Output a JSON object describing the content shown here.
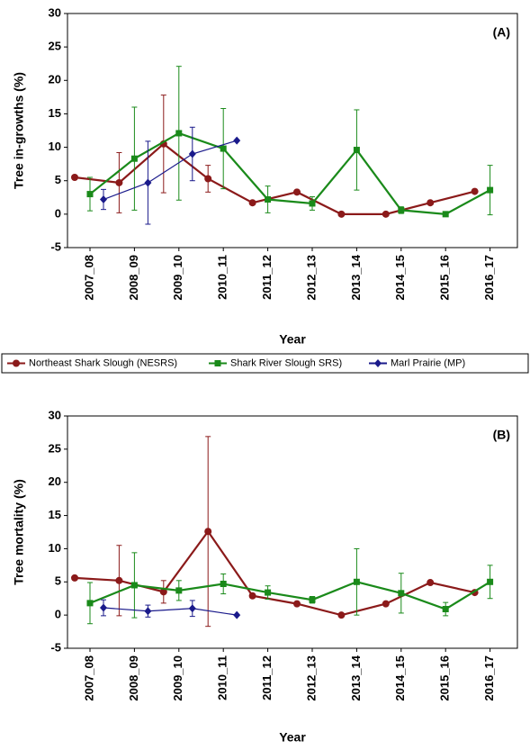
{
  "chart_data": [
    {
      "type": "line",
      "y_label": "Tree in-growths (%)",
      "x_label": "Year",
      "annotation": "(A)",
      "categories": [
        "2007_08",
        "2008_09",
        "2009_10",
        "2010_11",
        "2011_12",
        "2012_13",
        "2013_14",
        "2014_15",
        "2015_16",
        "2016_17"
      ],
      "ylim": [
        -5,
        30
      ],
      "yticks": [
        -5,
        0,
        5,
        10,
        15,
        20,
        25,
        30
      ],
      "legend": true,
      "series": [
        {
          "name": "Northeast Shark Slough (NESRS)",
          "color": "#8b1a1a",
          "marker": "circle",
          "values": [
            5.5,
            4.7,
            10.5,
            5.3,
            1.7,
            3.3,
            0,
            0,
            1.7,
            3.4
          ],
          "errors": [
            null,
            4.5,
            7.3,
            2,
            null,
            null,
            null,
            null,
            null,
            null
          ]
        },
        {
          "name": "Shark River Slough  SRS)",
          "color": "#1a8a1a",
          "marker": "square",
          "values": [
            3.0,
            8.3,
            12.1,
            9.8,
            2.2,
            1.6,
            9.6,
            0.6,
            0,
            3.6
          ],
          "errors": [
            2.5,
            7.7,
            10,
            6,
            2,
            1,
            6,
            0.5,
            null,
            3.7
          ]
        },
        {
          "name": "Marl Prairie (MP)",
          "color": "#1a1a8b",
          "marker": "diamond",
          "values": [
            2.2,
            4.7,
            9.0,
            11.0,
            null,
            null,
            null,
            null,
            null,
            null
          ],
          "errors": [
            1.5,
            6.2,
            4,
            null,
            null,
            null,
            null,
            null,
            null,
            null
          ]
        }
      ]
    },
    {
      "type": "line",
      "y_label": "Tree mortality (%)",
      "x_label": "Year",
      "annotation": "(B)",
      "categories": [
        "2007_08",
        "2008_09",
        "2009_10",
        "2010_11",
        "2011_12",
        "2012_13",
        "2013_14",
        "2014_15",
        "2015_16",
        "2016_17"
      ],
      "ylim": [
        -5,
        30
      ],
      "yticks": [
        -5,
        0,
        5,
        10,
        15,
        20,
        25,
        30
      ],
      "legend": false,
      "series": [
        {
          "color": "#8b1a1a",
          "marker": "circle",
          "values": [
            5.6,
            5.2,
            3.5,
            12.6,
            2.9,
            1.7,
            0,
            1.7,
            4.9,
            3.4
          ],
          "errors": [
            null,
            5.3,
            1.7,
            14.3,
            null,
            null,
            null,
            null,
            null,
            null
          ]
        },
        {
          "color": "#1a8a1a",
          "marker": "square",
          "values": [
            1.8,
            4.5,
            3.7,
            4.7,
            3.4,
            2.3,
            5.0,
            3.3,
            0.9,
            5.0
          ],
          "errors": [
            3.1,
            4.9,
            1.5,
            1.5,
            1,
            0.5,
            5,
            3,
            1,
            2.5
          ]
        },
        {
          "color": "#1a1a8b",
          "marker": "diamond",
          "values": [
            1.1,
            0.6,
            1.0,
            0,
            null,
            null,
            null,
            null,
            null,
            null
          ],
          "errors": [
            1.2,
            0.9,
            1.2,
            null,
            null,
            null,
            null,
            null,
            null,
            null
          ]
        }
      ]
    }
  ]
}
